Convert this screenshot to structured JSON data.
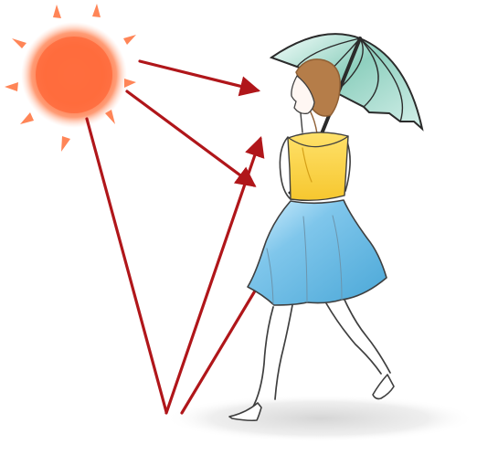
{
  "illustration": {
    "subject": "woman-with-parasol-walking-in-sunlight",
    "colors": {
      "background": "#ffffff",
      "sun_core": "#ff6b3d",
      "sun_glow": "#ffb08b",
      "sun_ray": "#ff7f4f",
      "arrow": "#b0161a",
      "shadow": "#d8d8d8",
      "parasol": "#8fc7b7",
      "parasol_line": "#2b2b2b",
      "hair": "#b57d49",
      "skin": "#fff4ef",
      "top": "#ffd94a",
      "skirt": "#7fc3e6",
      "line": "#3f3f3f"
    },
    "elements": {
      "sun": "sun-icon",
      "sunlight_arrows": "arrow-icon",
      "reflected_arrows": "arrow-icon",
      "parasol": "umbrella-icon",
      "woman": "person-icon"
    }
  }
}
